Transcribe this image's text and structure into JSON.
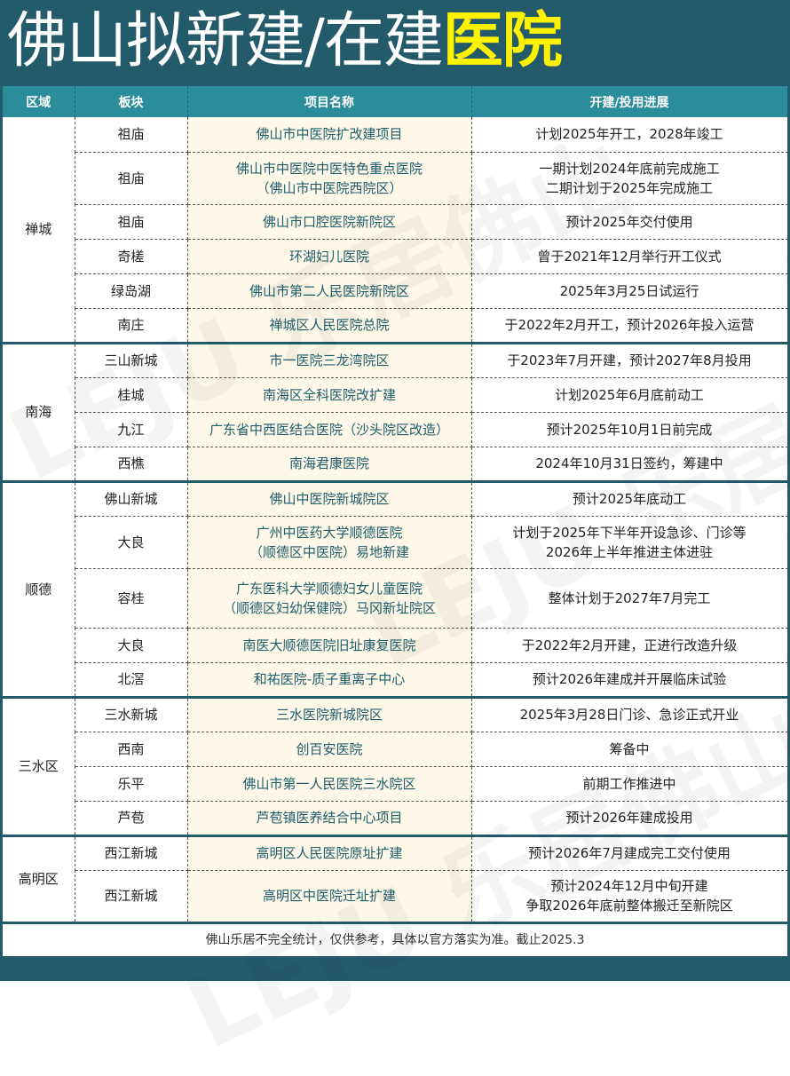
{
  "title": {
    "main": "佛山拟新建/在建",
    "highlight": "医院"
  },
  "colors": {
    "banner": "#235b6b",
    "header": "#2b8d99",
    "highlight": "#fff200",
    "name_bg": "#fdf8e7",
    "name_text": "#1f5d6c"
  },
  "watermark": "LEJU 乐居佛山",
  "headers": [
    "区域",
    "板块",
    "项目名称",
    "开建/投用进展"
  ],
  "groups": [
    {
      "region": "禅城",
      "rows": [
        {
          "block": "祖庙",
          "name": [
            "佛山市中医院扩改建项目"
          ],
          "progress": [
            "计划2025年开工，2028年竣工"
          ]
        },
        {
          "block": "祖庙",
          "name": [
            "佛山市中医院中医特色重点医院",
            "（佛山市中医院西院区）"
          ],
          "progress": [
            "一期计划2024年底前完成施工",
            "二期计划于2025年完成施工"
          ]
        },
        {
          "block": "祖庙",
          "name": [
            "佛山市口腔医院新院区"
          ],
          "progress": [
            "预计2025年交付使用"
          ]
        },
        {
          "block": "奇槎",
          "name": [
            "环湖妇儿医院"
          ],
          "progress": [
            "曾于2021年12月举行开工仪式"
          ]
        },
        {
          "block": "绿岛湖",
          "name": [
            "佛山市第二人民医院新院区"
          ],
          "progress": [
            "2025年3月25日试运行"
          ]
        },
        {
          "block": "南庄",
          "name": [
            "禅城区人民医院总院"
          ],
          "progress": [
            "于2022年2月开工，预计2026年投入运营"
          ]
        }
      ]
    },
    {
      "region": "南海",
      "rows": [
        {
          "block": "三山新城",
          "name": [
            "市一医院三龙湾院区"
          ],
          "progress": [
            "于2023年7月开建，预计2027年8月投用"
          ]
        },
        {
          "block": "桂城",
          "name": [
            "南海区全科医院改扩建"
          ],
          "progress": [
            "计划2025年6月底前动工"
          ]
        },
        {
          "block": "九江",
          "name": [
            "广东省中西医结合医院（沙头院区改造）"
          ],
          "progress": [
            "预计2025年10月1日前完成"
          ]
        },
        {
          "block": "西樵",
          "name": [
            "南海君康医院"
          ],
          "progress": [
            "2024年10月31日签约，筹建中"
          ]
        }
      ]
    },
    {
      "region": "顺德",
      "rows": [
        {
          "block": "佛山新城",
          "name": [
            "佛山中医院新城院区"
          ],
          "progress": [
            "预计2025年底动工"
          ]
        },
        {
          "block": "大良",
          "name": [
            "广州中医药大学顺德医院",
            "（顺德区中医院）易地新建"
          ],
          "progress": [
            "计划于2025年下半年开设急诊、门诊等",
            "2026年上半年推进主体进驻"
          ]
        },
        {
          "block": "容桂",
          "name": [
            "广东医科大学顺德妇女儿童医院",
            "（顺德区妇幼保健院）马冈新址院区"
          ],
          "progress": [
            "整体计划于2027年7月完工"
          ]
        },
        {
          "block": "大良",
          "name": [
            "南医大顺德医院旧址康复医院"
          ],
          "progress": [
            "于2022年2月开建，正进行改造升级"
          ]
        },
        {
          "block": "北滘",
          "name": [
            "和祐医院-质子重离子中心"
          ],
          "progress": [
            "预计2026年建成并开展临床试验"
          ]
        }
      ]
    },
    {
      "region": "三水区",
      "rows": [
        {
          "block": "三水新城",
          "name": [
            "三水医院新城院区"
          ],
          "progress": [
            "2025年3月28日门诊、急诊正式开业"
          ]
        },
        {
          "block": "西南",
          "name": [
            "创百安医院"
          ],
          "progress": [
            "筹备中"
          ]
        },
        {
          "block": "乐平",
          "name": [
            "佛山市第一人民医院三水院区"
          ],
          "progress": [
            "前期工作推进中"
          ]
        },
        {
          "block": "芦苞",
          "name": [
            "芦苞镇医养结合中心项目"
          ],
          "progress": [
            "预计2026年建成投用"
          ]
        }
      ]
    },
    {
      "region": "高明区",
      "rows": [
        {
          "block": "西江新城",
          "name": [
            "高明区人民医院原址扩建"
          ],
          "progress": [
            "预计2026年7月建成完工交付使用"
          ]
        },
        {
          "block": "西江新城",
          "name": [
            "高明区中医院迁址扩建"
          ],
          "progress": [
            "预计2024年12月中旬开建",
            "争取2026年底前整体搬迁至新院区"
          ]
        }
      ]
    }
  ],
  "footer": "佛山乐居不完全统计，仅供参考，具体以官方落实为准。截止2025.3"
}
